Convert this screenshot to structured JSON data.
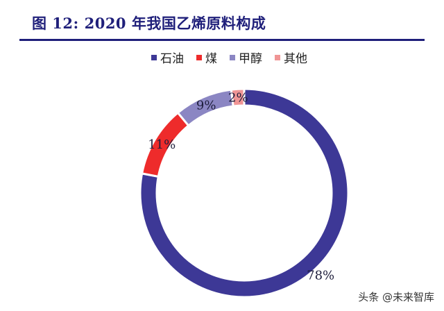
{
  "header": {
    "title": "图 12:  2020 年我国乙烯原料构成"
  },
  "watermark": "头条 @未来智库",
  "colors": {
    "title": "#1f1f7a",
    "series": [
      "#3d3896",
      "#ee2b2b",
      "#8b86c3",
      "#f09595"
    ]
  },
  "chart_data": {
    "type": "pie",
    "donut": true,
    "title": "",
    "legend_position": "top",
    "categories": [
      "石油",
      "煤",
      "甲醇",
      "其他"
    ],
    "values": [
      78,
      11,
      9,
      2
    ],
    "labels": [
      "78%",
      "11%",
      "9%",
      "2%"
    ]
  }
}
